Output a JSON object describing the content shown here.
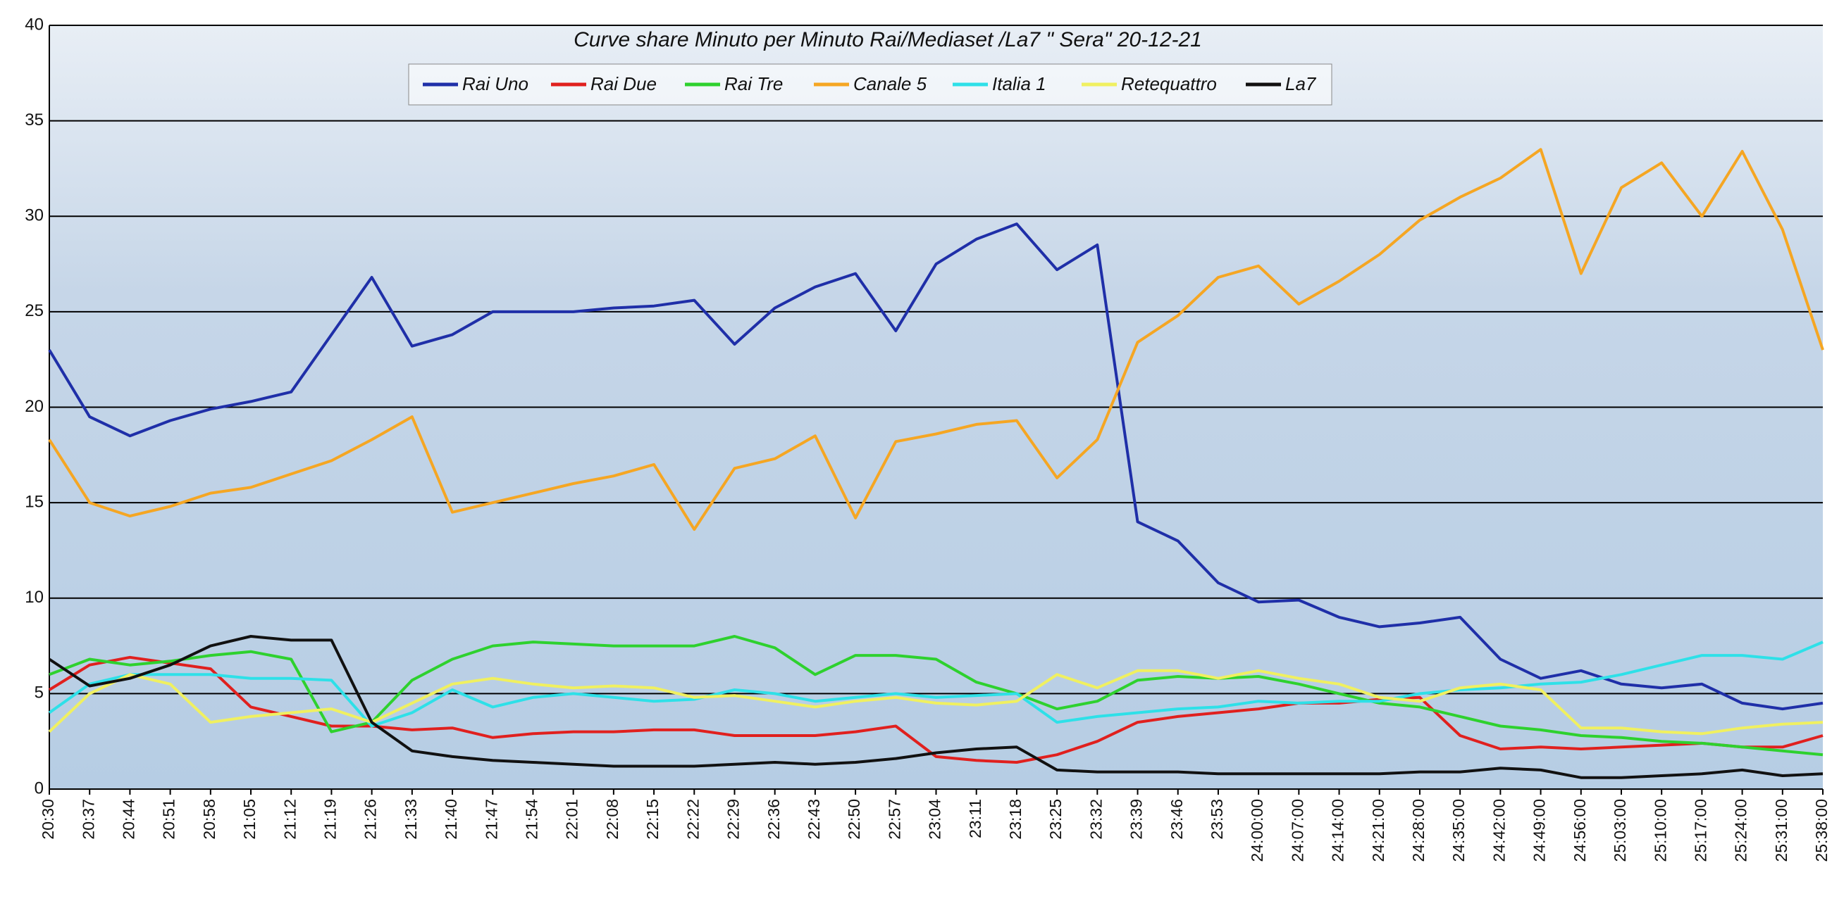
{
  "chart_data": {
    "type": "line",
    "title": "Curve share Minuto per Minuto Rai/Mediaset /La7 \" Sera\" 20-12-21",
    "categories": [
      "20:30",
      "20:37",
      "20:44",
      "20:51",
      "20:58",
      "21:05",
      "21:12",
      "21:19",
      "21:26",
      "21:33",
      "21:40",
      "21:47",
      "21:54",
      "22:01",
      "22:08",
      "22:15",
      "22:22",
      "22:29",
      "22:36",
      "22:43",
      "22:50",
      "22:57",
      "23:04",
      "23:11",
      "23:18",
      "23:25",
      "23:32",
      "23:39",
      "23:46",
      "23:53",
      "24:00:00",
      "24:07:00",
      "24:14:00",
      "24:21:00",
      "24:28:00",
      "24:35:00",
      "24:42:00",
      "24:49:00",
      "24:56:00",
      "25:03:00",
      "25:10:00",
      "25:17:00",
      "25:24:00",
      "25:31:00",
      "25:38:00"
    ],
    "series": [
      {
        "name": "Rai Uno",
        "color": "#1f2fa8",
        "values": [
          23,
          19.5,
          18.5,
          19.3,
          19.9,
          20.3,
          20.8,
          23.8,
          26.8,
          23.2,
          23.8,
          25,
          25,
          25,
          25.2,
          25.3,
          25.6,
          23.3,
          25.2,
          26.3,
          27,
          24,
          27.5,
          28.8,
          29.6,
          27.2,
          28.5,
          14,
          13,
          10.8,
          9.8,
          9.9,
          9,
          8.5,
          8.7,
          9,
          6.8,
          5.8,
          6.2,
          5.5,
          5.3,
          5.5,
          4.5,
          4.2,
          4.5
        ]
      },
      {
        "name": "Rai Due",
        "color": "#e0201e",
        "values": [
          5.2,
          6.5,
          6.9,
          6.6,
          6.3,
          4.3,
          3.8,
          3.3,
          3.3,
          3.1,
          3.2,
          2.7,
          2.9,
          3,
          3,
          3.1,
          3.1,
          2.8,
          2.8,
          2.8,
          3,
          3.3,
          1.7,
          1.5,
          1.4,
          1.8,
          2.5,
          3.5,
          3.8,
          4,
          4.2,
          4.5,
          4.5,
          4.7,
          4.8,
          2.8,
          2.1,
          2.2,
          2.1,
          2.2,
          2.3,
          2.4,
          2.2,
          2.2,
          2.8
        ]
      },
      {
        "name": "Rai Tre",
        "color": "#2ed12e",
        "values": [
          6,
          6.8,
          6.5,
          6.7,
          7,
          7.2,
          6.8,
          3,
          3.5,
          5.7,
          6.8,
          7.5,
          7.7,
          7.6,
          7.5,
          7.5,
          7.5,
          8,
          7.4,
          6,
          7,
          7,
          6.8,
          5.6,
          5,
          4.2,
          4.6,
          5.7,
          5.9,
          5.8,
          5.9,
          5.5,
          5,
          4.5,
          4.3,
          3.8,
          3.3,
          3.1,
          2.8,
          2.7,
          2.5,
          2.4,
          2.2,
          2,
          1.8
        ]
      },
      {
        "name": "Canale 5",
        "color": "#f5a623",
        "values": [
          18.3,
          15,
          14.3,
          14.8,
          15.5,
          15.8,
          16.5,
          17.2,
          18.3,
          19.5,
          14.5,
          15,
          15.5,
          16,
          16.4,
          17,
          13.6,
          16.8,
          17.3,
          18.5,
          14.2,
          18.2,
          18.6,
          19.1,
          19.3,
          16.3,
          18.3,
          23.4,
          24.8,
          26.8,
          27.4,
          25.4,
          26.6,
          28,
          29.8,
          31,
          32,
          33.5,
          27,
          31.5,
          32.8,
          30,
          33.4,
          29.3,
          23
        ]
      },
      {
        "name": "Italia 1",
        "color": "#2ee0e8",
        "values": [
          4,
          5.5,
          6,
          6,
          6,
          5.8,
          5.8,
          5.7,
          3.3,
          4,
          5.2,
          4.3,
          4.8,
          5,
          4.8,
          4.6,
          4.7,
          5.2,
          5,
          4.6,
          4.8,
          5,
          4.8,
          4.9,
          5,
          3.5,
          3.8,
          4,
          4.2,
          4.3,
          4.6,
          4.5,
          4.6,
          4.6,
          5,
          5.2,
          5.3,
          5.5,
          5.6,
          6,
          6.5,
          7,
          7,
          6.8,
          7.7
        ]
      },
      {
        "name": "Retequattro",
        "color": "#f0f060",
        "values": [
          3,
          5,
          6,
          5.5,
          3.5,
          3.8,
          4,
          4.2,
          3.5,
          4.5,
          5.5,
          5.8,
          5.5,
          5.3,
          5.4,
          5.3,
          4.8,
          4.9,
          4.6,
          4.3,
          4.6,
          4.8,
          4.5,
          4.4,
          4.6,
          6,
          5.3,
          6.2,
          6.2,
          5.8,
          6.2,
          5.8,
          5.5,
          4.8,
          4.6,
          5.3,
          5.5,
          5.2,
          3.2,
          3.2,
          3,
          2.9,
          3.2,
          3.4,
          3.5
        ]
      },
      {
        "name": "La7",
        "color": "#111111",
        "values": [
          6.8,
          5.4,
          5.8,
          6.5,
          7.5,
          8,
          7.8,
          7.8,
          3.5,
          2,
          1.7,
          1.5,
          1.4,
          1.3,
          1.2,
          1.2,
          1.2,
          1.3,
          1.4,
          1.3,
          1.4,
          1.6,
          1.9,
          2.1,
          2.2,
          1,
          0.9,
          0.9,
          0.9,
          0.8,
          0.8,
          0.8,
          0.8,
          0.8,
          0.9,
          0.9,
          1.1,
          1,
          0.6,
          0.6,
          0.7,
          0.8,
          1,
          0.7,
          0.8
        ]
      }
    ],
    "ylim": [
      0,
      40
    ],
    "yticks": [
      0,
      5,
      10,
      15,
      20,
      25,
      30,
      35,
      40
    ],
    "grid": true
  }
}
